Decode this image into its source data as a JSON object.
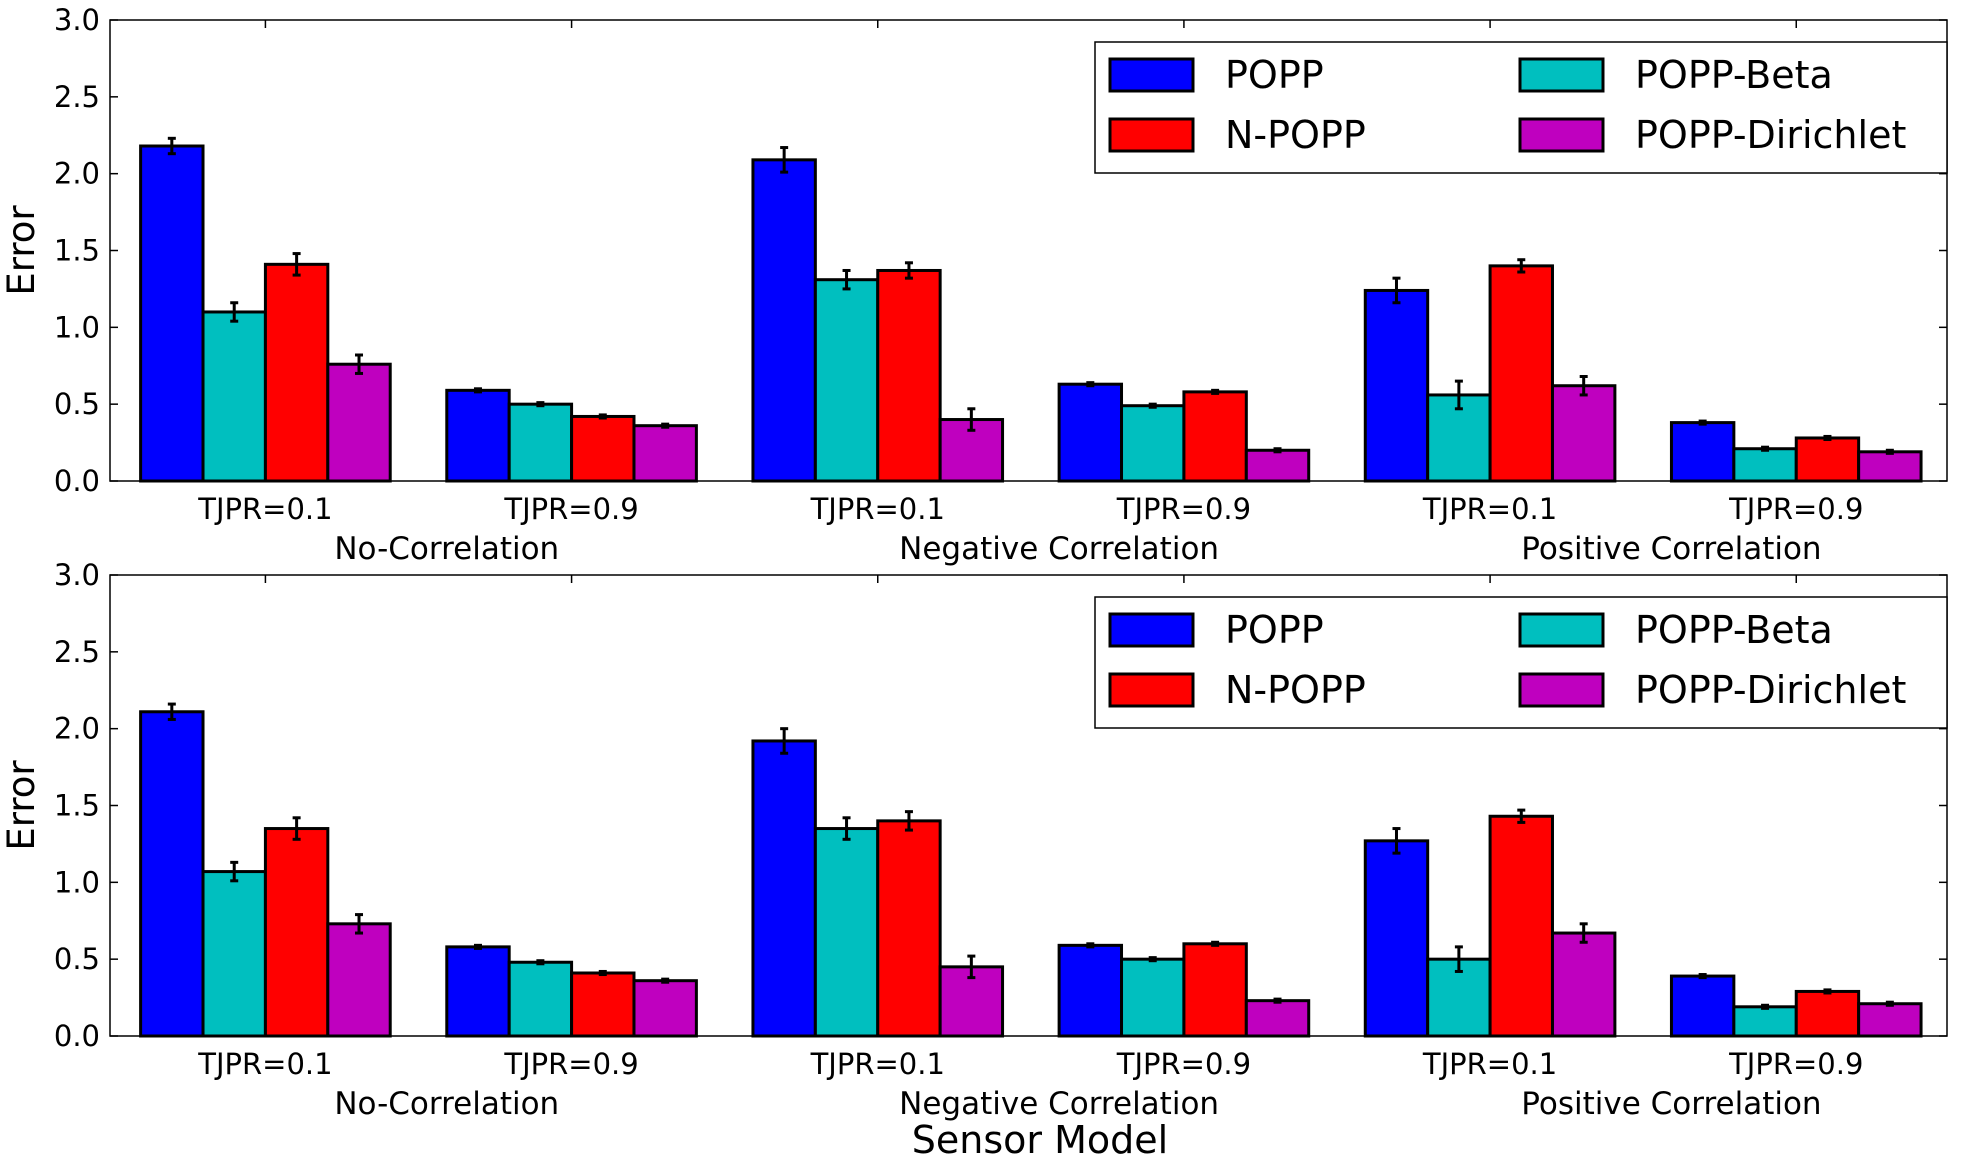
{
  "figure": {
    "xlabel": "Sensor Model"
  },
  "chart_data": [
    {
      "type": "bar",
      "ylabel": "Error",
      "ylim": [
        0,
        3.0
      ],
      "yticks": [
        "0.0",
        "0.5",
        "1.0",
        "1.5",
        "2.0",
        "2.5",
        "3.0"
      ],
      "categories": [
        "TJPR=0.1",
        "TJPR=0.9",
        "TJPR=0.1",
        "TJPR=0.9",
        "TJPR=0.1",
        "TJPR=0.9"
      ],
      "groups": [
        "No-Correlation",
        "Negative Correlation",
        "Positive Correlation"
      ],
      "legend_position": "top-right",
      "series": [
        {
          "name": "POPP",
          "color": "#0000ff",
          "values": [
            2.18,
            0.59,
            2.09,
            0.63,
            1.24,
            0.38
          ],
          "errors": [
            0.05,
            0.01,
            0.08,
            0.01,
            0.08,
            0.01
          ]
        },
        {
          "name": "POPP-Beta",
          "color": "#00bfbf",
          "values": [
            1.1,
            0.5,
            1.31,
            0.49,
            0.56,
            0.21
          ],
          "errors": [
            0.06,
            0.01,
            0.06,
            0.01,
            0.09,
            0.01
          ]
        },
        {
          "name": "N-POPP",
          "color": "#ff0000",
          "values": [
            1.41,
            0.42,
            1.37,
            0.58,
            1.4,
            0.28
          ],
          "errors": [
            0.07,
            0.01,
            0.05,
            0.01,
            0.04,
            0.01
          ]
        },
        {
          "name": "POPP-Dirichlet",
          "color": "#bf00bf",
          "values": [
            0.76,
            0.36,
            0.4,
            0.2,
            0.62,
            0.19
          ],
          "errors": [
            0.06,
            0.01,
            0.07,
            0.01,
            0.06,
            0.01
          ]
        }
      ]
    },
    {
      "type": "bar",
      "ylabel": "Error",
      "ylim": [
        0,
        3.0
      ],
      "yticks": [
        "0.0",
        "0.5",
        "1.0",
        "1.5",
        "2.0",
        "2.5",
        "3.0"
      ],
      "categories": [
        "TJPR=0.1",
        "TJPR=0.9",
        "TJPR=0.1",
        "TJPR=0.9",
        "TJPR=0.1",
        "TJPR=0.9"
      ],
      "groups": [
        "No-Correlation",
        "Negative Correlation",
        "Positive Correlation"
      ],
      "legend_position": "top-right",
      "series": [
        {
          "name": "POPP",
          "color": "#0000ff",
          "values": [
            2.11,
            0.58,
            1.92,
            0.59,
            1.27,
            0.39
          ],
          "errors": [
            0.05,
            0.01,
            0.08,
            0.01,
            0.08,
            0.01
          ]
        },
        {
          "name": "POPP-Beta",
          "color": "#00bfbf",
          "values": [
            1.07,
            0.48,
            1.35,
            0.5,
            0.5,
            0.19
          ],
          "errors": [
            0.06,
            0.01,
            0.07,
            0.01,
            0.08,
            0.01
          ]
        },
        {
          "name": "N-POPP",
          "color": "#ff0000",
          "values": [
            1.35,
            0.41,
            1.4,
            0.6,
            1.43,
            0.29
          ],
          "errors": [
            0.07,
            0.01,
            0.06,
            0.01,
            0.04,
            0.01
          ]
        },
        {
          "name": "POPP-Dirichlet",
          "color": "#bf00bf",
          "values": [
            0.73,
            0.36,
            0.45,
            0.23,
            0.67,
            0.21
          ],
          "errors": [
            0.06,
            0.01,
            0.07,
            0.01,
            0.06,
            0.01
          ]
        }
      ]
    }
  ]
}
